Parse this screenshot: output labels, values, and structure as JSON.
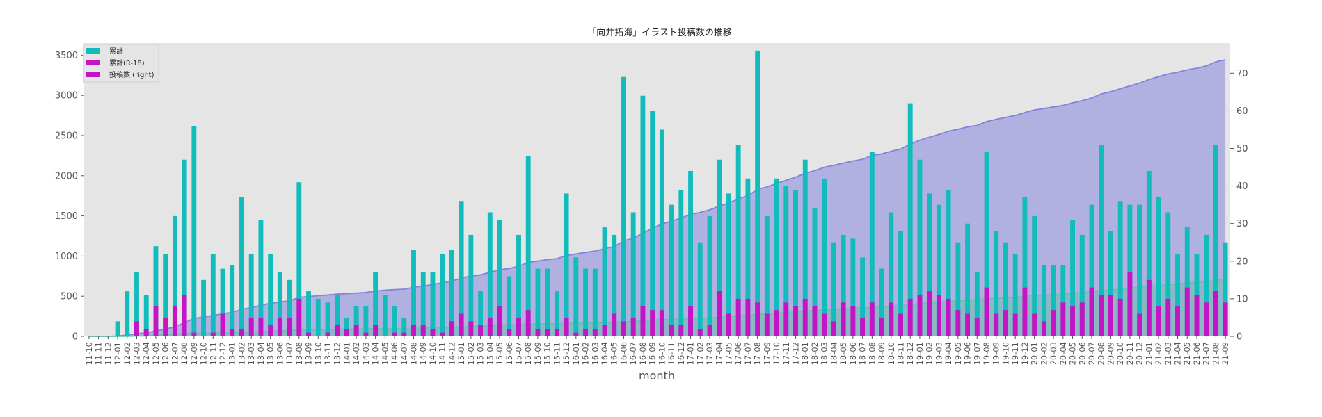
{
  "chart_data": {
    "type": "bar",
    "title": "「向井拓海」イラスト投稿数の推移",
    "xlabel": "month",
    "ylabel": "",
    "ylim": [
      0,
      3650
    ],
    "y2lim": [
      0,
      78
    ],
    "yticks": [
      0,
      500,
      1000,
      1500,
      2000,
      2500,
      3000,
      3500
    ],
    "y2ticks": [
      0,
      10,
      20,
      30,
      40,
      50,
      60,
      70
    ],
    "grid": false,
    "legend_position": "top-left",
    "legend": [
      "累計",
      "累計(R-18)",
      "投稿数 (right)"
    ],
    "categories": [
      "11-10",
      "11-11",
      "11-12",
      "12-01",
      "12-02",
      "12-03",
      "12-04",
      "12-05",
      "12-06",
      "12-07",
      "12-08",
      "12-09",
      "12-10",
      "12-11",
      "12-12",
      "13-01",
      "13-02",
      "13-03",
      "13-04",
      "13-05",
      "13-06",
      "13-07",
      "13-08",
      "13-09",
      "13-10",
      "13-11",
      "13-12",
      "14-01",
      "14-02",
      "14-03",
      "14-04",
      "14-05",
      "14-06",
      "14-07",
      "14-08",
      "14-09",
      "14-10",
      "14-11",
      "14-12",
      "15-01",
      "15-02",
      "15-03",
      "15-04",
      "15-05",
      "15-06",
      "15-07",
      "15-08",
      "15-09",
      "15-10",
      "15-11",
      "15-12",
      "16-01",
      "16-02",
      "16-03",
      "16-04",
      "16-05",
      "16-06",
      "16-07",
      "16-08",
      "16-09",
      "16-10",
      "16-11",
      "16-12",
      "17-01",
      "17-02",
      "17-03",
      "17-04",
      "17-05",
      "17-06",
      "17-07",
      "17-08",
      "17-09",
      "17-10",
      "17-11",
      "17-12",
      "18-01",
      "18-02",
      "18-03",
      "18-04",
      "18-05",
      "18-06",
      "18-07",
      "18-08",
      "18-09",
      "18-10",
      "18-11",
      "18-12",
      "19-01",
      "19-02",
      "19-03",
      "19-04",
      "19-05",
      "19-06",
      "19-07",
      "19-08",
      "19-09",
      "19-10",
      "19-11",
      "19-12",
      "20-01",
      "20-02",
      "20-03",
      "20-04",
      "20-05",
      "20-06",
      "20-07",
      "20-08",
      "20-09",
      "20-10",
      "20-11",
      "20-12",
      "21-01",
      "21-02",
      "21-03",
      "21-04",
      "21-05",
      "21-06",
      "21-07",
      "21-08",
      "21-09"
    ],
    "series": [
      {
        "name": "累計",
        "kind": "area",
        "axis": "left",
        "color": "#7b7bde",
        "values": [
          0,
          0,
          0,
          4,
          16,
          33,
          44,
          68,
          90,
          122,
          169,
          225,
          240,
          262,
          280,
          299,
          336,
          358,
          389,
          411,
          428,
          443,
          484,
          496,
          506,
          515,
          526,
          531,
          539,
          547,
          564,
          575,
          583,
          588,
          611,
          628,
          645,
          667,
          690,
          726,
          753,
          765,
          798,
          829,
          845,
          872,
          920,
          938,
          956,
          968,
          1006,
          1027,
          1045,
          1063,
          1092,
          1119,
          1188,
          1221,
          1285,
          1345,
          1400,
          1435,
          1474,
          1518,
          1543,
          1575,
          1622,
          1660,
          1711,
          1753,
          1829,
          1861,
          1903,
          1943,
          1982,
          2029,
          2063,
          2105,
          2130,
          2157,
          2183,
          2204,
          2253,
          2271,
          2304,
          2332,
          2394,
          2441,
          2479,
          2514,
          2553,
          2578,
          2608,
          2625,
          2674,
          2702,
          2727,
          2749,
          2786,
          2818,
          2837,
          2856,
          2875,
          2906,
          2933,
          2967,
          3018,
          3046,
          3082,
          3117,
          3152,
          3196,
          3233,
          3266,
          3288,
          3317,
          3339,
          3366,
          3417,
          3442
        ]
      },
      {
        "name": "累計(R-18)",
        "kind": "area",
        "axis": "left",
        "color": "#5fc4a8",
        "values": [
          0,
          0,
          0,
          0,
          0,
          4,
          6,
          14,
          19,
          27,
          38,
          39,
          39,
          40,
          46,
          48,
          50,
          55,
          60,
          63,
          68,
          73,
          83,
          84,
          84,
          85,
          88,
          90,
          93,
          94,
          97,
          97,
          98,
          99,
          102,
          105,
          107,
          108,
          112,
          118,
          122,
          125,
          130,
          138,
          140,
          145,
          152,
          154,
          156,
          158,
          163,
          164,
          166,
          168,
          171,
          177,
          181,
          186,
          194,
          201,
          208,
          211,
          214,
          222,
          224,
          227,
          239,
          245,
          255,
          265,
          274,
          280,
          287,
          296,
          304,
          314,
          322,
          328,
          332,
          341,
          349,
          354,
          363,
          368,
          377,
          383,
          393,
          404,
          416,
          427,
          437,
          444,
          450,
          455,
          468,
          474,
          481,
          487,
          500,
          506,
          510,
          517,
          526,
          534,
          543,
          556,
          567,
          578,
          588,
          605,
          611,
          626,
          634,
          644,
          652,
          665,
          676,
          685,
          697,
          706
        ]
      },
      {
        "name": "累計 (monthly)",
        "kind": "bar",
        "axis": "right",
        "color": "#12bcbc",
        "values": [
          0,
          0,
          0,
          4,
          12,
          17,
          11,
          24,
          22,
          32,
          47,
          56,
          15,
          22,
          18,
          19,
          37,
          22,
          31,
          22,
          17,
          15,
          41,
          12,
          10,
          9,
          11,
          5,
          8,
          8,
          17,
          11,
          8,
          5,
          23,
          17,
          17,
          22,
          23,
          36,
          27,
          12,
          33,
          31,
          16,
          27,
          48,
          18,
          18,
          12,
          38,
          21,
          18,
          18,
          29,
          27,
          69,
          33,
          64,
          60,
          55,
          35,
          39,
          44,
          25,
          32,
          47,
          38,
          51,
          42,
          76,
          32,
          42,
          40,
          39,
          47,
          34,
          42,
          25,
          27,
          26,
          21,
          49,
          18,
          33,
          28,
          62,
          47,
          38,
          35,
          39,
          25,
          30,
          17,
          49,
          28,
          25,
          22,
          37,
          32,
          19,
          19,
          19,
          31,
          27,
          35,
          51,
          28,
          36,
          35,
          35,
          44,
          37,
          33,
          22,
          29,
          22,
          27,
          51,
          25
        ]
      },
      {
        "name": "累計(R-18) (monthly)",
        "kind": "bar",
        "axis": "right",
        "color": "#c414c4",
        "values": [
          0,
          0,
          0,
          0,
          0,
          4,
          2,
          8,
          5,
          8,
          11,
          1,
          0,
          1,
          6,
          2,
          2,
          5,
          5,
          3,
          5,
          5,
          10,
          1,
          0,
          1,
          3,
          2,
          3,
          1,
          3,
          0,
          1,
          1,
          3,
          3,
          2,
          1,
          4,
          6,
          4,
          3,
          5,
          8,
          2,
          5,
          7,
          2,
          2,
          2,
          5,
          1,
          2,
          2,
          3,
          6,
          4,
          5,
          8,
          7,
          7,
          3,
          3,
          8,
          2,
          3,
          12,
          6,
          10,
          10,
          9,
          6,
          7,
          9,
          8,
          10,
          8,
          6,
          4,
          9,
          8,
          5,
          9,
          5,
          9,
          6,
          10,
          11,
          12,
          11,
          10,
          7,
          6,
          5,
          13,
          6,
          7,
          6,
          13,
          6,
          4,
          7,
          9,
          8,
          9,
          13,
          11,
          11,
          10,
          17,
          6,
          15,
          8,
          10,
          8,
          13,
          11,
          9,
          12,
          9
        ]
      }
    ]
  }
}
